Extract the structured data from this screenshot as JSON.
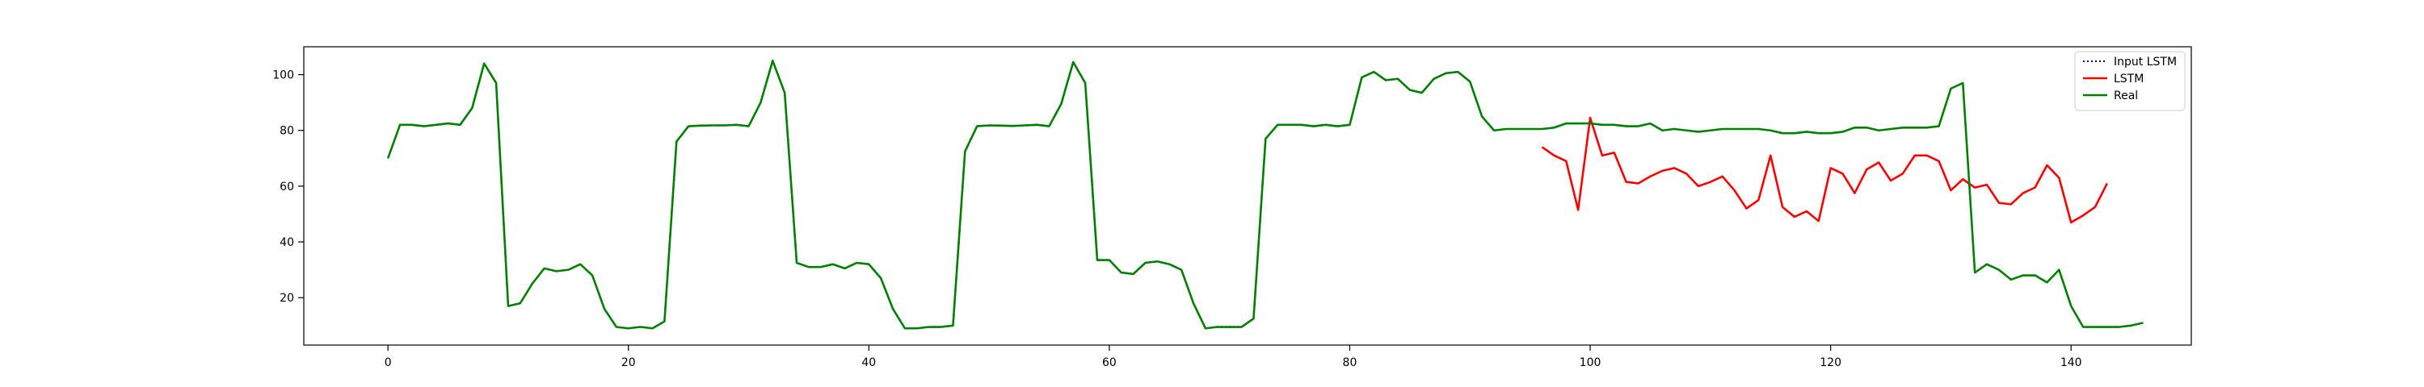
{
  "chart_data": {
    "type": "line",
    "xlim": [
      -7,
      150
    ],
    "ylim": [
      3,
      110
    ],
    "xticks": [
      0,
      20,
      40,
      60,
      80,
      100,
      120,
      140
    ],
    "yticks": [
      20,
      40,
      60,
      80,
      100
    ],
    "grid": false,
    "legend": "top-right",
    "series": [
      {
        "name": "Input LSTM",
        "color": "#000080",
        "style": "dotted",
        "x_start": 0,
        "values": [
          70,
          82,
          82,
          81.5,
          82,
          82.5,
          82,
          88,
          104,
          97,
          17,
          18,
          25,
          30.5,
          29.5,
          30,
          32,
          28,
          16,
          9.5,
          9,
          9.5,
          9,
          11.5,
          76,
          81.5,
          81.7,
          81.8,
          81.8,
          82,
          81.5,
          90,
          105,
          93.5,
          32.5,
          31,
          31,
          32,
          30.5,
          32.5,
          32,
          27,
          16,
          9,
          9,
          9.5,
          9.5,
          10,
          72.5,
          81.5,
          81.8,
          81.7,
          81.6,
          81.8,
          82,
          81.5,
          89.5,
          104.5,
          97,
          33.5,
          33.5,
          29,
          28.5,
          32.5,
          33,
          32,
          30,
          18,
          9,
          9.5,
          9.5,
          9.5,
          12.5,
          77,
          82,
          82,
          82,
          81.5,
          82,
          81.5,
          82,
          99,
          101,
          98,
          98.5,
          94.5,
          93.5,
          98.5,
          100.5,
          101,
          97.5,
          85,
          80
        ]
      },
      {
        "name": "LSTM",
        "color": "#ff0000",
        "style": "solid",
        "x_start": 96,
        "values": [
          74,
          71,
          69,
          51.5,
          84.5,
          71,
          72,
          61.5,
          61,
          63.5,
          65.5,
          66.5,
          64.5,
          60,
          61.5,
          63.5,
          58.5,
          52,
          55,
          71,
          52.5,
          49,
          51,
          47.5,
          66.5,
          64.5,
          57.5,
          66,
          68.5,
          62,
          64.5,
          71,
          71,
          69,
          58.5,
          62.5,
          59.5,
          60.5,
          54,
          53.5,
          57.5,
          59.5,
          67.5,
          63,
          47,
          49.5,
          52.5,
          61
        ]
      },
      {
        "name": "Real",
        "color": "#008000",
        "style": "solid",
        "x_start": 0,
        "values": [
          70,
          82,
          82,
          81.5,
          82,
          82.5,
          82,
          88,
          104,
          97,
          17,
          18,
          25,
          30.5,
          29.5,
          30,
          32,
          28,
          16,
          9.5,
          9,
          9.5,
          9,
          11.5,
          76,
          81.5,
          81.7,
          81.8,
          81.8,
          82,
          81.5,
          90,
          105,
          93.5,
          32.5,
          31,
          31,
          32,
          30.5,
          32.5,
          32,
          27,
          16,
          9,
          9,
          9.5,
          9.5,
          10,
          72.5,
          81.5,
          81.8,
          81.7,
          81.6,
          81.8,
          82,
          81.5,
          89.5,
          104.5,
          97,
          33.5,
          33.5,
          29,
          28.5,
          32.5,
          33,
          32,
          30,
          18,
          9,
          9.5,
          9.5,
          9.5,
          12.5,
          77,
          82,
          82,
          82,
          81.5,
          82,
          81.5,
          82,
          99,
          101,
          98,
          98.5,
          94.5,
          93.5,
          98.5,
          100.5,
          101,
          97.5,
          85,
          80,
          80.5,
          80.5,
          80.5,
          80.5,
          81,
          82.5,
          82.5,
          82.5,
          82,
          82,
          81.5,
          81.5,
          82.5,
          80,
          80.5,
          80,
          79.5,
          80,
          80.5,
          80.5,
          80.5,
          80.5,
          80,
          79,
          79,
          79.5,
          79,
          79,
          79.5,
          81,
          81,
          80,
          80.5,
          81,
          81,
          81,
          81.5,
          95,
          97,
          29,
          32,
          30,
          26.5,
          28,
          28,
          25.5,
          30,
          17,
          9.5,
          9.5,
          9.5,
          9.5,
          10,
          11
        ]
      }
    ]
  }
}
